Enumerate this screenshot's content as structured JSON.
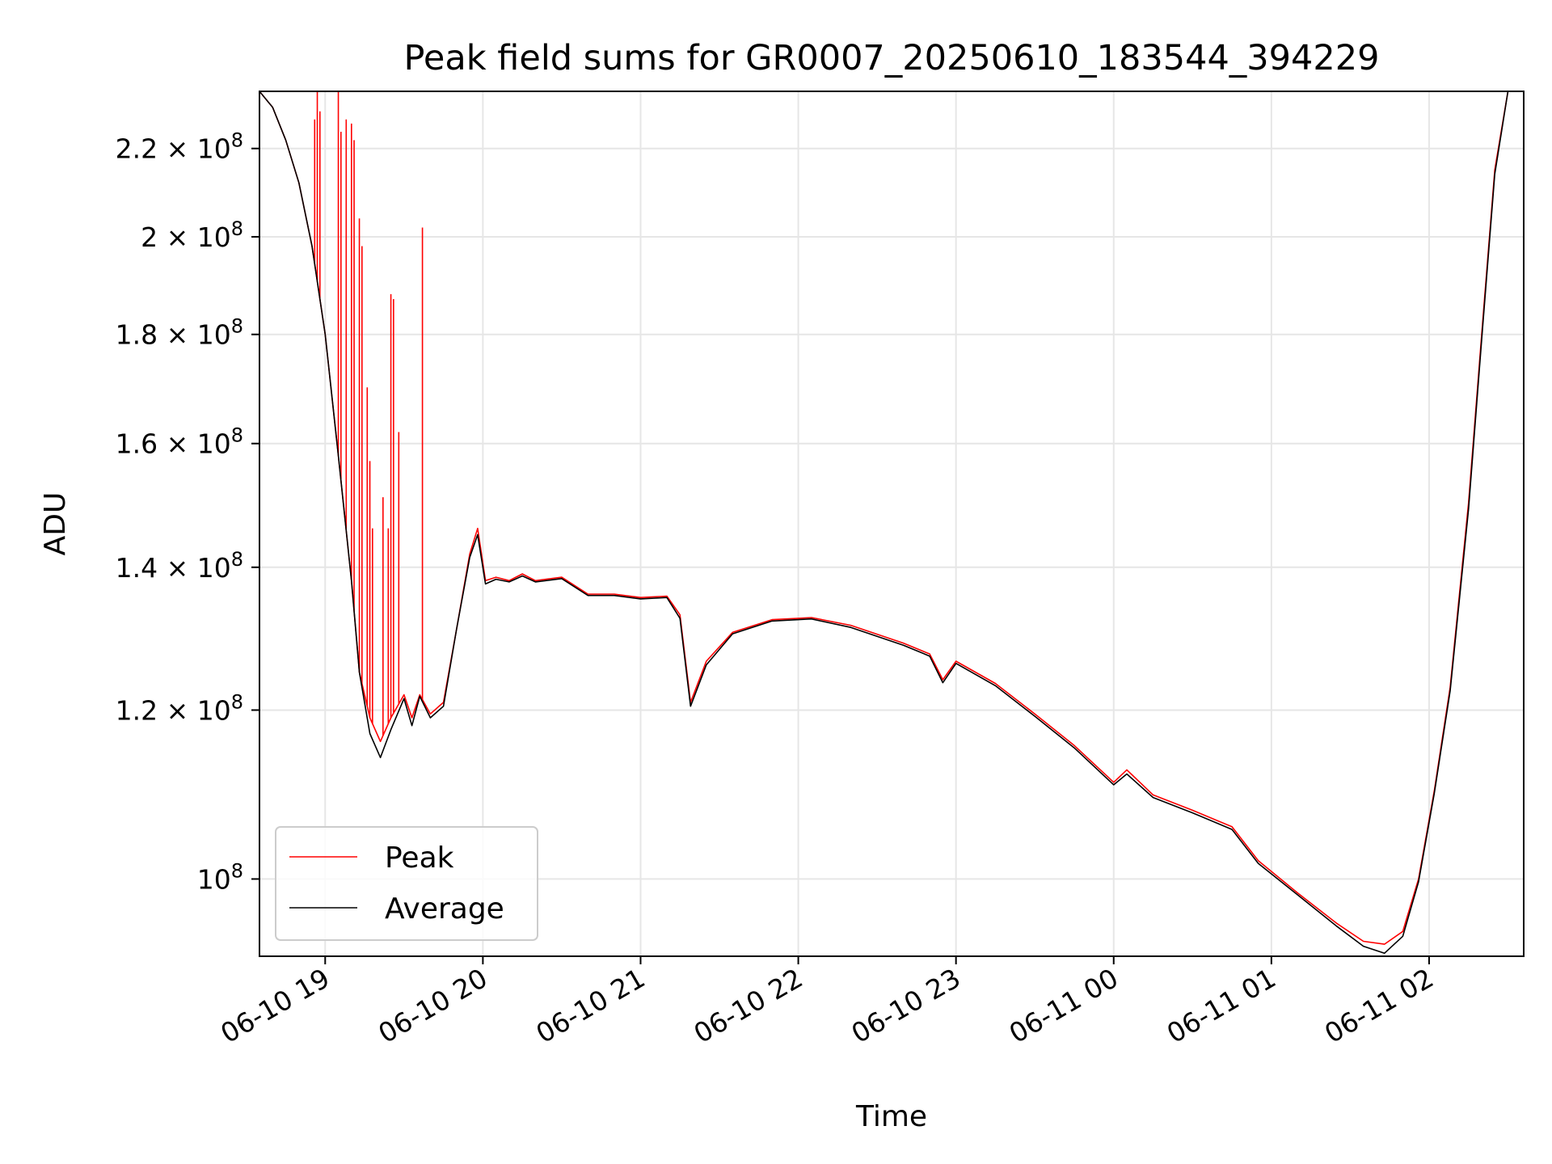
{
  "chart_data": {
    "type": "line",
    "title": "Peak field sums for GR0007_20250610_183544_394229",
    "xlabel": "Time",
    "ylabel": "ADU",
    "yscale": "log",
    "xlim": [
      "06-10 18:35",
      "06-11 02:36"
    ],
    "ylim": [
      92000000,
      234000000
    ],
    "x_ticks": [
      {
        "value": "06-10 19:00",
        "label": "06-10 19"
      },
      {
        "value": "06-10 20:00",
        "label": "06-10 20"
      },
      {
        "value": "06-10 21:00",
        "label": "06-10 21"
      },
      {
        "value": "06-10 22:00",
        "label": "06-10 22"
      },
      {
        "value": "06-10 23:00",
        "label": "06-10 23"
      },
      {
        "value": "06-11 00:00",
        "label": "06-11 00"
      },
      {
        "value": "06-11 01:00",
        "label": "06-11 01"
      },
      {
        "value": "06-11 02:00",
        "label": "06-11 02"
      }
    ],
    "y_ticks": [
      {
        "value": 220000000,
        "base": "2.2 × 10",
        "exp": "8"
      },
      {
        "value": 200000000,
        "base": "2 × 10",
        "exp": "8"
      },
      {
        "value": 180000000,
        "base": "1.8 × 10",
        "exp": "8"
      },
      {
        "value": 160000000,
        "base": "1.6 × 10",
        "exp": "8"
      },
      {
        "value": 140000000,
        "base": "1.4 × 10",
        "exp": "8"
      },
      {
        "value": 120000000,
        "base": "1.2 × 10",
        "exp": "8"
      },
      {
        "value": 100000000,
        "base": "10",
        "exp": "8"
      }
    ],
    "grid": true,
    "legend_position": "lower-left",
    "series": [
      {
        "name": "Peak",
        "color": "#ff0000",
        "points": [
          [
            "06-10 18:35",
            234000000
          ],
          [
            "06-10 18:40",
            230000000
          ],
          [
            "06-10 18:45",
            222000000
          ],
          [
            "06-10 18:50",
            212000000
          ],
          [
            "06-10 18:55",
            198000000
          ],
          [
            "06-10 19:00",
            180000000
          ],
          [
            "06-10 19:05",
            158000000
          ],
          [
            "06-10 19:10",
            138000000
          ],
          [
            "06-10 19:13",
            125000000
          ],
          [
            "06-10 19:17",
            119000000
          ],
          [
            "06-10 19:21",
            116000000
          ],
          [
            "06-10 19:25",
            119000000
          ],
          [
            "06-10 19:30",
            122000000
          ],
          [
            "06-10 19:33",
            119000000
          ],
          [
            "06-10 19:36",
            122000000
          ],
          [
            "06-10 19:40",
            119500000
          ],
          [
            "06-10 19:45",
            121000000
          ],
          [
            "06-10 19:50",
            131000000
          ],
          [
            "06-10 19:55",
            142000000
          ],
          [
            "06-10 19:58",
            146000000
          ],
          [
            "06-10 20:01",
            138000000
          ],
          [
            "06-10 20:05",
            138500000
          ],
          [
            "06-10 20:10",
            138000000
          ],
          [
            "06-10 20:15",
            139000000
          ],
          [
            "06-10 20:20",
            138000000
          ],
          [
            "06-10 20:30",
            138500000
          ],
          [
            "06-10 20:40",
            136000000
          ],
          [
            "06-10 20:50",
            136000000
          ],
          [
            "06-10 21:00",
            135500000
          ],
          [
            "06-10 21:10",
            135700000
          ],
          [
            "06-10 21:15",
            133000000
          ],
          [
            "06-10 21:19",
            121000000
          ],
          [
            "06-10 21:25",
            126500000
          ],
          [
            "06-10 21:35",
            130500000
          ],
          [
            "06-10 21:50",
            132300000
          ],
          [
            "06-10 22:00",
            132500000
          ],
          [
            "06-10 22:05",
            132600000
          ],
          [
            "06-10 22:20",
            131500000
          ],
          [
            "06-10 22:40",
            129000000
          ],
          [
            "06-10 22:50",
            127500000
          ],
          [
            "06-10 22:55",
            124000000
          ],
          [
            "06-10 23:00",
            126500000
          ],
          [
            "06-10 23:15",
            123500000
          ],
          [
            "06-10 23:30",
            119500000
          ],
          [
            "06-10 23:45",
            115500000
          ],
          [
            "06-11 00:00",
            111000000
          ],
          [
            "06-11 00:05",
            112500000
          ],
          [
            "06-11 00:15",
            109500000
          ],
          [
            "06-11 00:30",
            107700000
          ],
          [
            "06-11 00:45",
            105800000
          ],
          [
            "06-11 00:55",
            102000000
          ],
          [
            "06-11 01:10",
            98500000
          ],
          [
            "06-11 01:25",
            95300000
          ],
          [
            "06-11 01:35",
            93500000
          ],
          [
            "06-11 01:43",
            93200000
          ],
          [
            "06-11 01:50",
            94500000
          ],
          [
            "06-11 01:56",
            100000000
          ],
          [
            "06-11 02:02",
            110000000
          ],
          [
            "06-11 02:08",
            123000000
          ],
          [
            "06-11 02:15",
            150000000
          ],
          [
            "06-11 02:20",
            180000000
          ],
          [
            "06-11 02:25",
            215000000
          ],
          [
            "06-11 02:30",
            234000000
          ],
          [
            "06-11 02:36",
            234000000
          ]
        ],
        "spikes": [
          [
            "06-10 18:56",
            227000000
          ],
          [
            "06-10 18:57",
            234000000
          ],
          [
            "06-10 18:58",
            229000000
          ],
          [
            "06-10 19:05",
            234000000
          ],
          [
            "06-10 19:06",
            224000000
          ],
          [
            "06-10 19:08",
            227000000
          ],
          [
            "06-10 19:10",
            226000000
          ],
          [
            "06-10 19:11",
            222000000
          ],
          [
            "06-10 19:13",
            204000000
          ],
          [
            "06-10 19:14",
            198000000
          ],
          [
            "06-10 19:16",
            170000000
          ],
          [
            "06-10 19:17",
            157000000
          ],
          [
            "06-10 19:18",
            146000000
          ],
          [
            "06-10 19:22",
            151000000
          ],
          [
            "06-10 19:24",
            146000000
          ],
          [
            "06-10 19:25",
            188000000
          ],
          [
            "06-10 19:26",
            187000000
          ],
          [
            "06-10 19:28",
            162000000
          ],
          [
            "06-10 19:37",
            202000000
          ]
        ]
      },
      {
        "name": "Average",
        "color": "#000000",
        "points": [
          [
            "06-10 18:35",
            234000000
          ],
          [
            "06-10 18:40",
            230000000
          ],
          [
            "06-10 18:45",
            222000000
          ],
          [
            "06-10 18:50",
            212000000
          ],
          [
            "06-10 18:55",
            198000000
          ],
          [
            "06-10 19:00",
            180000000
          ],
          [
            "06-10 19:05",
            158000000
          ],
          [
            "06-10 19:10",
            138000000
          ],
          [
            "06-10 19:13",
            125000000
          ],
          [
            "06-10 19:17",
            117000000
          ],
          [
            "06-10 19:21",
            114000000
          ],
          [
            "06-10 19:25",
            117500000
          ],
          [
            "06-10 19:30",
            121500000
          ],
          [
            "06-10 19:33",
            118000000
          ],
          [
            "06-10 19:36",
            121800000
          ],
          [
            "06-10 19:40",
            119000000
          ],
          [
            "06-10 19:45",
            120500000
          ],
          [
            "06-10 19:50",
            131000000
          ],
          [
            "06-10 19:55",
            141500000
          ],
          [
            "06-10 19:58",
            145000000
          ],
          [
            "06-10 20:01",
            137500000
          ],
          [
            "06-10 20:05",
            138200000
          ],
          [
            "06-10 20:10",
            137800000
          ],
          [
            "06-10 20:15",
            138700000
          ],
          [
            "06-10 20:20",
            137800000
          ],
          [
            "06-10 20:30",
            138300000
          ],
          [
            "06-10 20:40",
            135800000
          ],
          [
            "06-10 20:50",
            135800000
          ],
          [
            "06-10 21:00",
            135300000
          ],
          [
            "06-10 21:10",
            135500000
          ],
          [
            "06-10 21:15",
            132500000
          ],
          [
            "06-10 21:19",
            120500000
          ],
          [
            "06-10 21:25",
            126000000
          ],
          [
            "06-10 21:35",
            130300000
          ],
          [
            "06-10 21:50",
            132100000
          ],
          [
            "06-10 22:00",
            132300000
          ],
          [
            "06-10 22:05",
            132400000
          ],
          [
            "06-10 22:20",
            131200000
          ],
          [
            "06-10 22:40",
            128700000
          ],
          [
            "06-10 22:50",
            127200000
          ],
          [
            "06-10 22:55",
            123600000
          ],
          [
            "06-10 23:00",
            126200000
          ],
          [
            "06-10 23:15",
            123200000
          ],
          [
            "06-10 23:30",
            119200000
          ],
          [
            "06-10 23:45",
            115200000
          ],
          [
            "06-11 00:00",
            110700000
          ],
          [
            "06-11 00:05",
            112000000
          ],
          [
            "06-11 00:15",
            109200000
          ],
          [
            "06-11 00:30",
            107400000
          ],
          [
            "06-11 00:45",
            105500000
          ],
          [
            "06-11 00:55",
            101700000
          ],
          [
            "06-11 01:10",
            98300000
          ],
          [
            "06-11 01:25",
            95000000
          ],
          [
            "06-11 01:35",
            93000000
          ],
          [
            "06-11 01:43",
            92300000
          ],
          [
            "06-11 01:50",
            94000000
          ],
          [
            "06-11 01:56",
            99700000
          ],
          [
            "06-11 02:02",
            109700000
          ],
          [
            "06-11 02:08",
            122500000
          ],
          [
            "06-11 02:15",
            149000000
          ],
          [
            "06-11 02:20",
            179000000
          ],
          [
            "06-11 02:25",
            214000000
          ],
          [
            "06-11 02:30",
            234000000
          ],
          [
            "06-11 02:36",
            234000000
          ]
        ]
      }
    ]
  }
}
